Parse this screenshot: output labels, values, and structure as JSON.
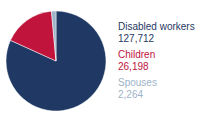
{
  "chart_data": {
    "type": "pie",
    "categories": [
      "Disabled workers",
      "Children",
      "Spouses"
    ],
    "values": [
      127712,
      26198,
      2264
    ],
    "colors": [
      "#1f3864",
      "#c0143c",
      "#9db3c8"
    ],
    "data_labels": true,
    "value_labels": [
      "127,712",
      "26,198",
      "2,264"
    ]
  }
}
